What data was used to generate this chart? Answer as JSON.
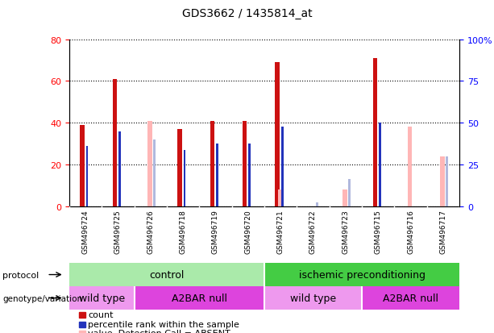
{
  "title": "GDS3662 / 1435814_at",
  "samples": [
    "GSM496724",
    "GSM496725",
    "GSM496726",
    "GSM496718",
    "GSM496719",
    "GSM496720",
    "GSM496721",
    "GSM496722",
    "GSM496723",
    "GSM496715",
    "GSM496716",
    "GSM496717"
  ],
  "count": [
    39,
    61,
    0,
    37,
    41,
    41,
    69,
    0,
    0,
    71,
    0,
    0
  ],
  "percentile_rank": [
    29,
    36,
    0,
    27,
    30,
    30,
    38,
    0,
    0,
    40,
    0,
    0
  ],
  "value_absent": [
    0,
    0,
    41,
    0,
    0,
    0,
    8,
    0,
    8,
    0,
    38,
    24
  ],
  "rank_absent": [
    0,
    0,
    32,
    0,
    0,
    0,
    0,
    2,
    13,
    0,
    0,
    24
  ],
  "color_count": "#cc1111",
  "color_rank": "#2233bb",
  "color_value_absent": "#ffb6b6",
  "color_rank_absent": "#b0b8dd",
  "ylim_left": [
    0,
    80
  ],
  "ylim_right": [
    0,
    100
  ],
  "yticks_left": [
    0,
    20,
    40,
    60,
    80
  ],
  "yticks_right": [
    0,
    25,
    50,
    75,
    100
  ],
  "ytick_labels_left": [
    "0",
    "20",
    "40",
    "60",
    "80"
  ],
  "ytick_labels_right": [
    "0",
    "25",
    "50",
    "75",
    "100%"
  ],
  "color_protocol_control": "#aaeaaa",
  "color_protocol_ischemic": "#44cc44",
  "color_genotype_wildtype": "#ee99ee",
  "color_genotype_a2bar": "#dd44dd",
  "bg_xtick": "#cccccc"
}
